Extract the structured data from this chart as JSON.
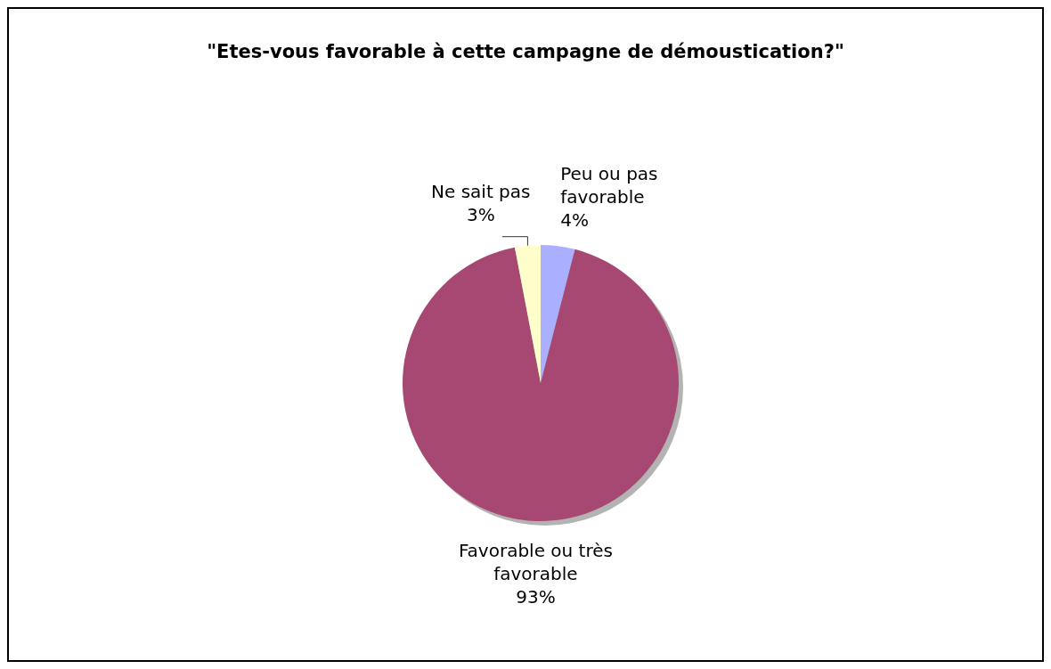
{
  "chart_data": {
    "type": "pie",
    "title": "\"Etes-vous favorable à cette campagne de démoustication?\"",
    "categories": [
      "Peu ou pas favorable",
      "Favorable ou très favorable",
      "Ne sait pas"
    ],
    "values": [
      4,
      93,
      3
    ],
    "colors": [
      "#aab0ff",
      "#a64872",
      "#ffffcc"
    ],
    "value_labels": [
      "4%",
      "93%",
      "3%"
    ]
  }
}
